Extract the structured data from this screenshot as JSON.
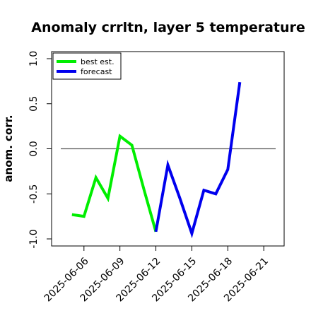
{
  "chart_data": {
    "type": "line",
    "title": "Anomaly crrltn, layer 5 temperature",
    "xlabel": "",
    "ylabel": "anom. corr.",
    "ylim": [
      -1.0,
      1.0
    ],
    "yticks": [
      "-1.0",
      "-0.5",
      "0.0",
      "0.5",
      "1.0"
    ],
    "yticks_values": [
      -1.0,
      -0.5,
      0.0,
      0.5,
      1.0
    ],
    "xticks": [
      "2025-06-06",
      "2025-06-09",
      "2025-06-12",
      "2025-06-15",
      "2025-06-18",
      "2025-06-21"
    ],
    "xticks_day": [
      6,
      9,
      12,
      15,
      18,
      21
    ],
    "highlight_tick": "2025-06-12",
    "highlight_color": "#2e8b2e",
    "xlim_day": [
      3.3,
      22.7
    ],
    "reference_line_y": 0.0,
    "legend_position": "top-left",
    "series": [
      {
        "name": "best est.",
        "color": "#00ee00",
        "x_day": [
          5,
          6,
          7,
          8,
          9,
          10,
          11,
          12
        ],
        "values": [
          -0.73,
          -0.75,
          -0.32,
          -0.55,
          0.14,
          0.04,
          -0.45,
          -0.92
        ]
      },
      {
        "name": "forecast",
        "color": "#0000ee",
        "x_day": [
          12,
          13,
          14,
          15,
          16,
          17,
          18,
          19
        ],
        "values": [
          -0.92,
          -0.18,
          -0.55,
          -0.94,
          -0.46,
          -0.5,
          -0.23,
          0.74
        ]
      }
    ]
  }
}
